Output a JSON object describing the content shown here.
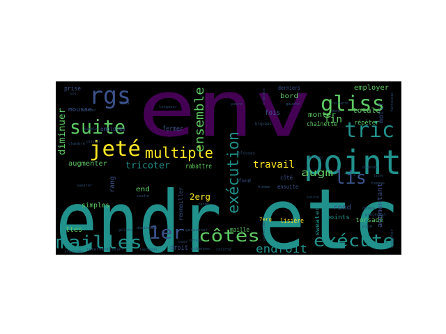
{
  "palette": {
    "background": "#000000",
    "purple": "#440154",
    "indigo": "#3b528b",
    "teal": "#21918c",
    "green": "#5ec962",
    "yellow": "#fde725",
    "dim": "#2c4a6e"
  },
  "words": [
    {
      "text": "env",
      "color": "purple"
    },
    {
      "text": "endr",
      "color": "teal"
    },
    {
      "text": "etc",
      "color": "teal"
    },
    {
      "text": "point",
      "color": "teal"
    },
    {
      "text": "rgs",
      "color": "indigo"
    },
    {
      "text": "gliss",
      "color": "green"
    },
    {
      "text": "tric",
      "color": "teal"
    },
    {
      "text": "suite",
      "color": "green"
    },
    {
      "text": "jeté",
      "color": "yellow"
    },
    {
      "text": "multiple",
      "color": "yellow"
    },
    {
      "text": "mailles",
      "color": "teal"
    },
    {
      "text": "1er",
      "color": "indigo"
    },
    {
      "text": "côtes",
      "color": "green"
    },
    {
      "text": "exécute",
      "color": "teal"
    },
    {
      "text": "exécution",
      "color": "teal"
    },
    {
      "text": "ensemble",
      "color": "green"
    },
    {
      "text": "lis",
      "color": "indigo"
    },
    {
      "text": "endroit",
      "color": "teal"
    },
    {
      "text": "travail",
      "color": "yellow"
    },
    {
      "text": "fin",
      "color": "green"
    },
    {
      "text": "augm",
      "color": "green"
    },
    {
      "text": "tricoter",
      "color": "teal"
    },
    {
      "text": "diminuer",
      "color": "green"
    },
    {
      "text": "employer",
      "color": "green"
    },
    {
      "text": "totale",
      "color": "green"
    },
    {
      "text": "monter",
      "color": "green"
    },
    {
      "text": "bord",
      "color": "green"
    },
    {
      "text": "chaînette",
      "color": "green"
    },
    {
      "text": "fois",
      "color": "indigo"
    },
    {
      "text": "motif",
      "color": "indigo"
    },
    {
      "text": "répéter",
      "color": "green"
    },
    {
      "text": "augmenter",
      "color": "green"
    },
    {
      "text": "rabattre",
      "color": "green"
    },
    {
      "text": "fermer",
      "color": "indigo"
    },
    {
      "text": "end",
      "color": "green"
    },
    {
      "text": "2erg",
      "color": "yellow"
    },
    {
      "text": "rang",
      "color": "indigo"
    },
    {
      "text": "simples",
      "color": "green"
    },
    {
      "text": "ttes",
      "color": "green"
    },
    {
      "text": "droit",
      "color": "indigo"
    },
    {
      "text": "maille",
      "color": "green"
    },
    {
      "text": "lisière",
      "color": "yellow"
    },
    {
      "text": "points",
      "color": "teal"
    },
    {
      "text": "rond",
      "color": "indigo"
    },
    {
      "text": "torsadé",
      "color": "green"
    },
    {
      "text": "sweaters",
      "color": "teal"
    },
    {
      "text": "ensuite",
      "color": "indigo"
    },
    {
      "text": "côté",
      "color": "indigo"
    },
    {
      "text": "fond",
      "color": "indigo"
    },
    {
      "text": "prise",
      "color": "indigo"
    },
    {
      "text": "mousse",
      "color": "indigo"
    },
    {
      "text": "employés",
      "color": "indigo"
    },
    {
      "text": "ens",
      "color": "indigo"
    },
    {
      "text": "derniers",
      "color": "indigo"
    },
    {
      "text": "augmentant",
      "color": "indigo"
    },
    {
      "text": "renmailler",
      "color": "indigo"
    },
    {
      "text": "7erg",
      "color": "yellow"
    },
    {
      "text": "5erg",
      "color": "dim"
    },
    {
      "text": "biquées",
      "color": "dim"
    },
    {
      "text": "blouses",
      "color": "dim"
    },
    {
      "text": "cravate",
      "color": "dim"
    },
    {
      "text": "gauche",
      "color": "dim"
    },
    {
      "text": "doubles",
      "color": "dim"
    },
    {
      "text": "arrêter",
      "color": "dim"
    },
    {
      "text": "donne",
      "color": "dim"
    },
    {
      "text": "pied",
      "color": "dim"
    },
    {
      "text": "garçonnet",
      "color": "dim"
    },
    {
      "text": "calotte",
      "color": "dim"
    },
    {
      "text": "écharpes",
      "color": "dim"
    },
    {
      "text": "fauteuil",
      "color": "dim"
    },
    {
      "text": "gilets",
      "color": "dim"
    },
    {
      "text": "diminuant",
      "color": "dim"
    },
    {
      "text": "intervertissant",
      "color": "dim"
    },
    {
      "text": "cache",
      "color": "dim"
    },
    {
      "text": "rangs",
      "color": "dim"
    },
    {
      "text": "chambre",
      "color": "dim"
    },
    {
      "text": "sweater",
      "color": "dim"
    },
    {
      "text": "simple",
      "color": "dim"
    },
    {
      "text": "tourner",
      "color": "dim"
    },
    {
      "text": "sol",
      "color": "dim"
    },
    {
      "text": "longueur",
      "color": "dim"
    },
    {
      "text": "dos",
      "color": "dim"
    },
    {
      "text": "fantaisie",
      "color": "dim"
    },
    {
      "text": "confection",
      "color": "dim"
    },
    {
      "text": "exécuter",
      "color": "dim"
    },
    {
      "text": "femme",
      "color": "dim"
    },
    {
      "text": "laine",
      "color": "dim"
    },
    {
      "text": "précédent",
      "color": "dim"
    },
    {
      "text": "paire",
      "color": "dim"
    },
    {
      "text": "glisser",
      "color": "dim"
    },
    {
      "text": "prises",
      "color": "dim"
    },
    {
      "text": "oser",
      "color": "dim"
    },
    {
      "text": "tranches",
      "color": "dim"
    },
    {
      "text": "homme",
      "color": "dim"
    },
    {
      "text": "restante",
      "color": "dim"
    },
    {
      "text": "suivre",
      "color": "dim"
    }
  ]
}
